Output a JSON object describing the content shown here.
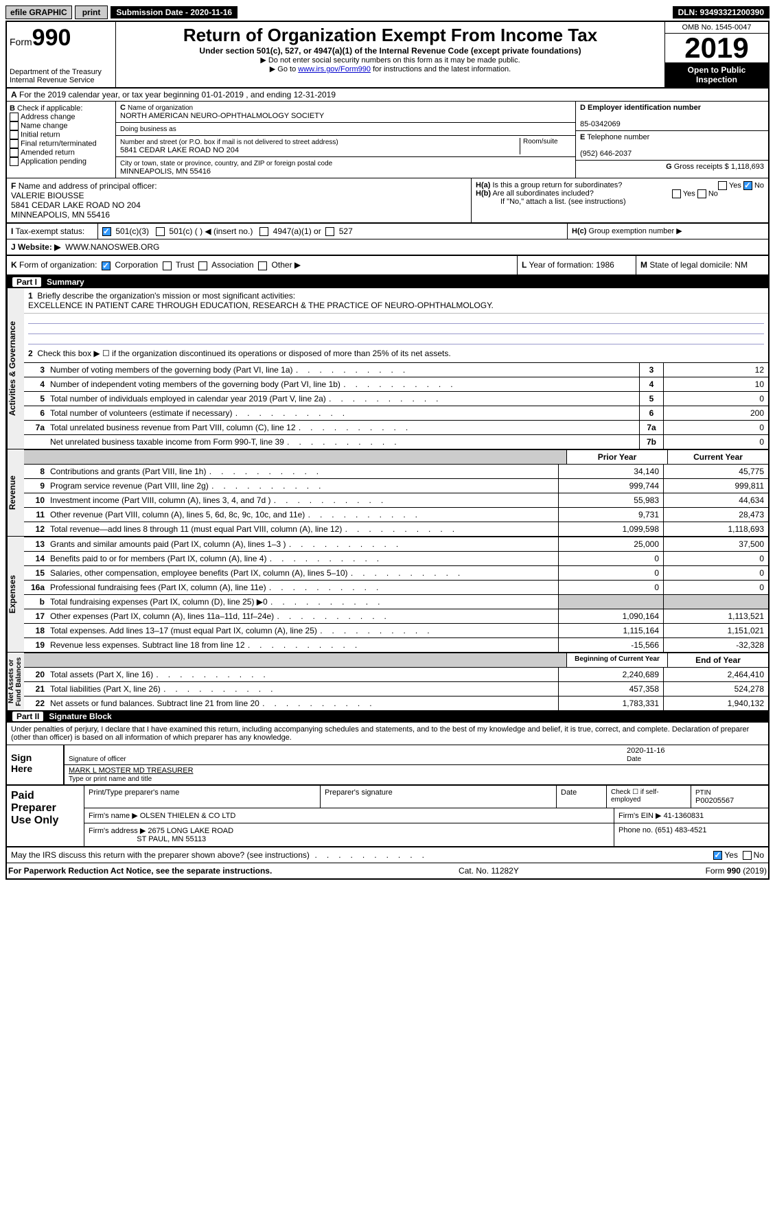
{
  "topbar": {
    "efile": "efile GRAPHIC",
    "print": "print",
    "subdate_label": "Submission Date - 2020-11-16",
    "dln": "DLN: 93493321200390"
  },
  "header": {
    "form_prefix": "Form",
    "form_num": "990",
    "dept": "Department of the Treasury\nInternal Revenue Service",
    "title": "Return of Organization Exempt From Income Tax",
    "sub1": "Under section 501(c), 527, or 4947(a)(1) of the Internal Revenue Code (except private foundations)",
    "sub2": "▶ Do not enter social security numbers on this form as it may be made public.",
    "sub3_a": "▶ Go to ",
    "sub3_link": "www.irs.gov/Form990",
    "sub3_b": " for instructions and the latest information.",
    "omb": "OMB No. 1545-0047",
    "year": "2019",
    "open": "Open to Public",
    "inspection": "Inspection"
  },
  "periodA": "For the 2019 calendar year, or tax year beginning 01-01-2019   , and ending 12-31-2019",
  "B": {
    "label": "Check if applicable:",
    "opts": [
      "Address change",
      "Name change",
      "Initial return",
      "Final return/terminated",
      "Amended return",
      "Application pending"
    ]
  },
  "C": {
    "name_lbl": "Name of organization",
    "name": "NORTH AMERICAN NEURO-OPHTHALMOLOGY SOCIETY",
    "dba_lbl": "Doing business as",
    "addr_lbl": "Number and street (or P.O. box if mail is not delivered to street address)",
    "room_lbl": "Room/suite",
    "addr": "5841 CEDAR LAKE ROAD NO 204",
    "city_lbl": "City or town, state or province, country, and ZIP or foreign postal code",
    "city": "MINNEAPOLIS, MN  55416"
  },
  "D": {
    "lbl": "Employer identification number",
    "val": "85-0342069",
    "prefix": "D"
  },
  "E": {
    "lbl": "Telephone number",
    "val": "(952) 646-2037",
    "prefix": "E"
  },
  "G": {
    "lbl": "Gross receipts $",
    "val": "1,118,693",
    "prefix": "G"
  },
  "F": {
    "lbl": "Name and address of principal officer:",
    "name": "VALERIE BIOUSSE",
    "addr1": "5841 CEDAR LAKE ROAD NO 204",
    "addr2": "MINNEAPOLIS, MN  55416",
    "prefix": "F"
  },
  "H": {
    "a": "Is this a group return for subordinates?",
    "b": "Are all subordinates included?",
    "b_note": "If \"No,\" attach a list. (see instructions)",
    "c": "Group exemption number ▶",
    "yes": "Yes",
    "no": "No"
  },
  "I": {
    "lbl": "Tax-exempt status:",
    "o1": "501(c)(3)",
    "o2": "501(c) (  ) ◀ (insert no.)",
    "o3": "4947(a)(1) or",
    "o4": "527"
  },
  "J": {
    "lbl": "Website: ▶",
    "val": "WWW.NANOSWEB.ORG"
  },
  "K": {
    "lbl": "Form of organization:",
    "opts": [
      "Corporation",
      "Trust",
      "Association",
      "Other ▶"
    ]
  },
  "L": {
    "lbl": "Year of formation:",
    "val": "1986"
  },
  "M": {
    "lbl": "State of legal domicile:",
    "val": "NM"
  },
  "part1": {
    "label": "Part I",
    "title": "Summary"
  },
  "summary": {
    "q1": "Briefly describe the organization's mission or most significant activities:",
    "q1v": "EXCELLENCE IN PATIENT CARE THROUGH EDUCATION, RESEARCH & THE PRACTICE OF NEURO-OPHTHALMOLOGY.",
    "q2": "Check this box ▶ ☐  if the organization discontinued its operations or disposed of more than 25% of its net assets.",
    "lines_gov": [
      {
        "n": "3",
        "d": "Number of voting members of the governing body (Part VI, line 1a)",
        "box": "3",
        "v": "12"
      },
      {
        "n": "4",
        "d": "Number of independent voting members of the governing body (Part VI, line 1b)",
        "box": "4",
        "v": "10"
      },
      {
        "n": "5",
        "d": "Total number of individuals employed in calendar year 2019 (Part V, line 2a)",
        "box": "5",
        "v": "0"
      },
      {
        "n": "6",
        "d": "Total number of volunteers (estimate if necessary)",
        "box": "6",
        "v": "200"
      },
      {
        "n": "7a",
        "d": "Total unrelated business revenue from Part VIII, column (C), line 12",
        "box": "7a",
        "v": "0"
      },
      {
        "n": "",
        "d": "Net unrelated business taxable income from Form 990-T, line 39",
        "box": "7b",
        "v": "0"
      }
    ],
    "col_prior": "Prior Year",
    "col_curr": "Current Year",
    "rev": [
      {
        "n": "8",
        "d": "Contributions and grants (Part VIII, line 1h)",
        "p": "34,140",
        "c": "45,775"
      },
      {
        "n": "9",
        "d": "Program service revenue (Part VIII, line 2g)",
        "p": "999,744",
        "c": "999,811"
      },
      {
        "n": "10",
        "d": "Investment income (Part VIII, column (A), lines 3, 4, and 7d )",
        "p": "55,983",
        "c": "44,634"
      },
      {
        "n": "11",
        "d": "Other revenue (Part VIII, column (A), lines 5, 6d, 8c, 9c, 10c, and 11e)",
        "p": "9,731",
        "c": "28,473"
      },
      {
        "n": "12",
        "d": "Total revenue—add lines 8 through 11 (must equal Part VIII, column (A), line 12)",
        "p": "1,099,598",
        "c": "1,118,693"
      }
    ],
    "exp": [
      {
        "n": "13",
        "d": "Grants and similar amounts paid (Part IX, column (A), lines 1–3 )",
        "p": "25,000",
        "c": "37,500"
      },
      {
        "n": "14",
        "d": "Benefits paid to or for members (Part IX, column (A), line 4)",
        "p": "0",
        "c": "0"
      },
      {
        "n": "15",
        "d": "Salaries, other compensation, employee benefits (Part IX, column (A), lines 5–10)",
        "p": "0",
        "c": "0"
      },
      {
        "n": "16a",
        "d": "Professional fundraising fees (Part IX, column (A), line 11e)",
        "p": "0",
        "c": "0"
      },
      {
        "n": "b",
        "d": "Total fundraising expenses (Part IX, column (D), line 25) ▶0",
        "p": "",
        "c": "",
        "gray": true
      },
      {
        "n": "17",
        "d": "Other expenses (Part IX, column (A), lines 11a–11d, 11f–24e)",
        "p": "1,090,164",
        "c": "1,113,521"
      },
      {
        "n": "18",
        "d": "Total expenses. Add lines 13–17 (must equal Part IX, column (A), line 25)",
        "p": "1,115,164",
        "c": "1,151,021"
      },
      {
        "n": "19",
        "d": "Revenue less expenses. Subtract line 18 from line 12",
        "p": "-15,566",
        "c": "-32,328"
      }
    ],
    "col_beg": "Beginning of Current Year",
    "col_end": "End of Year",
    "net": [
      {
        "n": "20",
        "d": "Total assets (Part X, line 16)",
        "p": "2,240,689",
        "c": "2,464,410"
      },
      {
        "n": "21",
        "d": "Total liabilities (Part X, line 26)",
        "p": "457,358",
        "c": "524,278"
      },
      {
        "n": "22",
        "d": "Net assets or fund balances. Subtract line 21 from line 20",
        "p": "1,783,331",
        "c": "1,940,132"
      }
    ],
    "vlabels": {
      "gov": "Activities & Governance",
      "rev": "Revenue",
      "exp": "Expenses",
      "net": "Net Assets or\nFund Balances"
    }
  },
  "part2": {
    "label": "Part II",
    "title": "Signature Block"
  },
  "perjury": "Under penalties of perjury, I declare that I have examined this return, including accompanying schedules and statements, and to the best of my knowledge and belief, it is true, correct, and complete. Declaration of preparer (other than officer) is based on all information of which preparer has any knowledge.",
  "sign": {
    "here": "Sign\nHere",
    "sig_of_officer": "Signature of officer",
    "date": "2020-11-16",
    "date_lbl": "Date",
    "typed": "MARK L MOSTER MD TREASURER",
    "typed_lbl": "Type or print name and title"
  },
  "paid": {
    "lbl": "Paid\nPreparer\nUse Only",
    "h1": "Print/Type preparer's name",
    "h2": "Preparer's signature",
    "h3": "Date",
    "h4a": "Check ☐ if self-employed",
    "h4b": "PTIN",
    "ptin": "P00205567",
    "firm_lbl": "Firm's name   ▶",
    "firm": "OLSEN THIELEN & CO LTD",
    "ein_lbl": "Firm's EIN ▶",
    "ein": "41-1360831",
    "addr_lbl": "Firm's address ▶",
    "addr1": "2675 LONG LAKE ROAD",
    "addr2": "ST PAUL, MN  55113",
    "phone_lbl": "Phone no.",
    "phone": "(651) 483-4521"
  },
  "discuss": "May the IRS discuss this return with the preparer shown above? (see instructions)",
  "footer": {
    "pra": "For Paperwork Reduction Act Notice, see the separate instructions.",
    "cat": "Cat. No. 11282Y",
    "form": "Form 990 (2019)"
  }
}
